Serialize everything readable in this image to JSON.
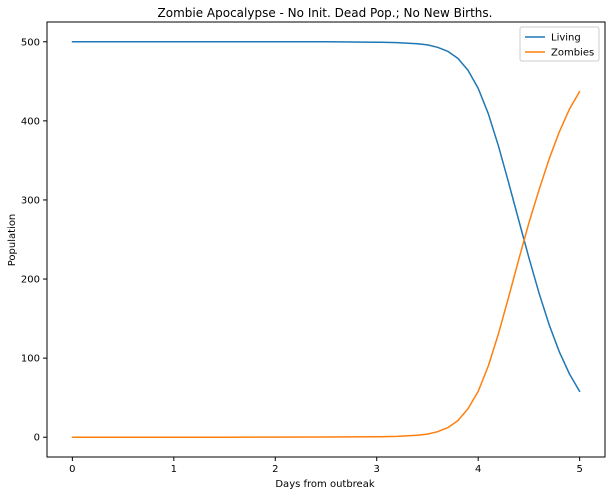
{
  "chart_data": {
    "type": "line",
    "title": "Zombie Apocalypse - No Init. Dead Pop.; No New Births.",
    "xlabel": "Days from outbreak",
    "ylabel": "Population",
    "xlim": [
      -0.25,
      5.25
    ],
    "ylim": [
      -25,
      525
    ],
    "xticks": [
      0,
      1,
      2,
      3,
      4,
      5
    ],
    "yticks": [
      0,
      100,
      200,
      300,
      400,
      500
    ],
    "grid": false,
    "legend_position": "top-right",
    "x": [
      0,
      0.5,
      1,
      1.5,
      2,
      2.5,
      3,
      3.2,
      3.4,
      3.5,
      3.6,
      3.7,
      3.8,
      3.9,
      4.0,
      4.1,
      4.2,
      4.3,
      4.4,
      4.5,
      4.6,
      4.7,
      4.8,
      4.9,
      5.0
    ],
    "series": [
      {
        "name": "Living",
        "color": "#1f77b4",
        "values": [
          500,
          500,
          500,
          500,
          500,
          500,
          499.5,
          499,
          497.5,
          496,
          493,
          488,
          479,
          464,
          441,
          409,
          368,
          322,
          274,
          227,
          182,
          142,
          108,
          80,
          58
        ]
      },
      {
        "name": "Zombies",
        "color": "#ff7f0e",
        "values": [
          0,
          0,
          0,
          0,
          0.1,
          0.3,
          0.6,
          1,
          2.4,
          4,
          7,
          12,
          21,
          36,
          58,
          90,
          131,
          177,
          225,
          271,
          313,
          352,
          386,
          415,
          437
        ]
      }
    ]
  }
}
